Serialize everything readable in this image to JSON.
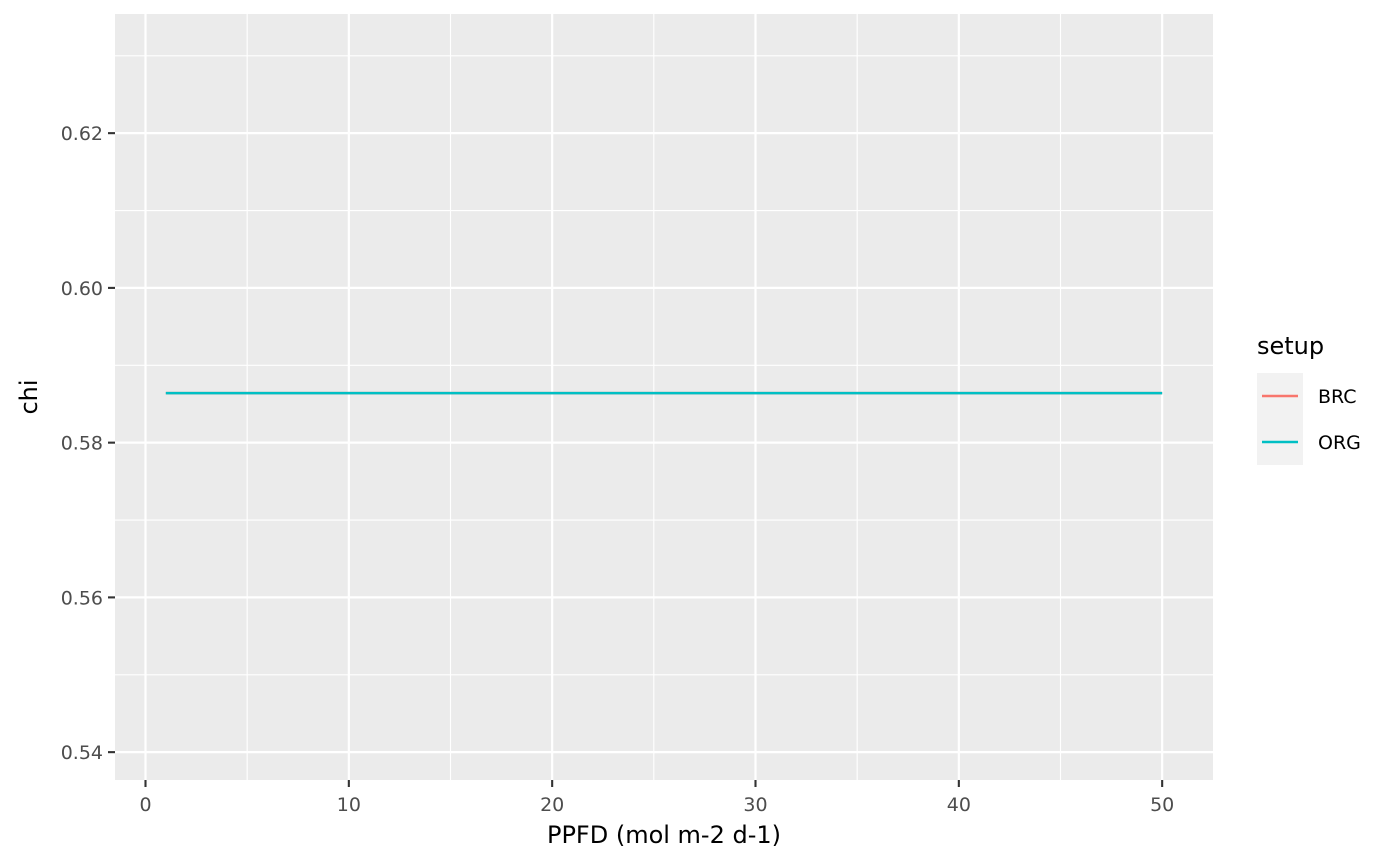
{
  "chart_data": {
    "type": "line",
    "xlabel": "PPFD (mol m-2 d-1)",
    "ylabel": "chi",
    "xlim": [
      -1.5,
      52.5
    ],
    "ylim": [
      0.5364,
      0.6354
    ],
    "x_ticks": [
      0,
      10,
      20,
      30,
      40,
      50
    ],
    "x_minor": [
      5,
      15,
      25,
      35,
      45
    ],
    "y_ticks": [
      0.54,
      0.56,
      0.58,
      0.6,
      0.62
    ],
    "y_tick_labels": [
      "0.54",
      "0.56",
      "0.58",
      "0.60",
      "0.62"
    ],
    "y_minor": [
      0.55,
      0.57,
      0.59,
      0.61,
      0.63
    ],
    "grid": true,
    "legend": {
      "title": "setup",
      "placement": "right",
      "entries": [
        "BRC",
        "ORG"
      ]
    },
    "series": [
      {
        "name": "BRC",
        "color": "#F8766D",
        "x": [
          1,
          50
        ],
        "y": [
          0.5864,
          0.5864
        ]
      },
      {
        "name": "ORG",
        "color": "#00BFC4",
        "x": [
          1,
          50
        ],
        "y": [
          0.5864,
          0.5864
        ]
      }
    ],
    "panel_color": "#EBEBEB",
    "grid_color": "#FFFFFF"
  }
}
